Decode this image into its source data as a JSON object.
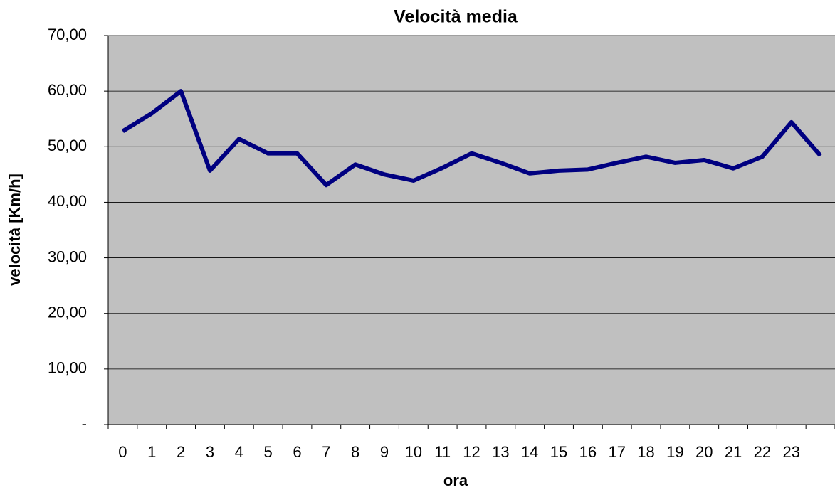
{
  "chart_data": {
    "type": "line",
    "title": "Velocità media",
    "x_label": "ora",
    "y_label": "velocità [Km/h]",
    "categories": [
      "0",
      "1",
      "2",
      "3",
      "4",
      "5",
      "6",
      "7",
      "8",
      "9",
      "10",
      "11",
      "12",
      "13",
      "14",
      "15",
      "16",
      "17",
      "18",
      "19",
      "20",
      "21",
      "22",
      "23",
      null
    ],
    "series": [
      {
        "name": "Velocità media",
        "color": "#000080",
        "values": [
          52.8,
          56,
          60,
          45.7,
          51.4,
          48.8,
          48.8,
          43.1,
          46.8,
          45.0,
          43.9,
          46.2,
          48.8,
          47.1,
          45.2,
          45.7,
          45.9,
          47.1,
          48.2,
          47.1,
          47.6,
          46.1,
          48.2,
          54.4,
          48.4
        ]
      }
    ],
    "ylim": [
      0,
      70
    ],
    "yticks": [
      {
        "value": 0,
        "label": "-"
      },
      {
        "value": 10,
        "label": "10,00"
      },
      {
        "value": 20,
        "label": "20,00"
      },
      {
        "value": 30,
        "label": "30,00"
      },
      {
        "value": 40,
        "label": "40,00"
      },
      {
        "value": 50,
        "label": "50,00"
      },
      {
        "value": 60,
        "label": "60,00"
      },
      {
        "value": 70,
        "label": "70,00"
      }
    ],
    "grid": true,
    "plot_background": "#c0c0c0"
  }
}
